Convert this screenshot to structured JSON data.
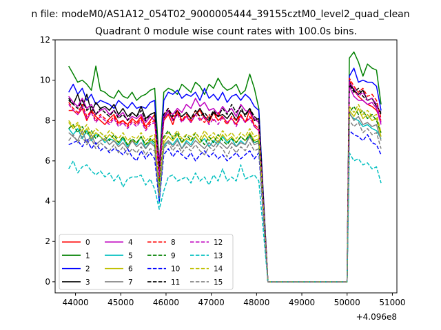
{
  "figure": {
    "suptitle": "n file: modeM0/AS1A12_054T02_9000005444_39155cztM0_level2_quad_clean"
  },
  "chart_data": {
    "type": "line",
    "title": "Quadrant 0 module wise count rates with 100.0s bins.",
    "xlabel": "",
    "ylabel": "",
    "x_offset_label": "+4.096e8",
    "x_offset": 409600000,
    "xlim_rel": [
      43550,
      51100
    ],
    "ylim": [
      -0.55,
      12
    ],
    "xticks_rel": [
      44000,
      45000,
      46000,
      47000,
      48000,
      49000,
      50000,
      51000
    ],
    "xtick_labels": [
      "44000",
      "45000",
      "46000",
      "47000",
      "48000",
      "49000",
      "50000",
      "51000"
    ],
    "yticks": [
      0,
      2,
      4,
      6,
      8,
      10,
      12
    ],
    "ytick_labels": [
      "0",
      "2",
      "4",
      "6",
      "8",
      "10",
      "12"
    ],
    "grid": false,
    "legend_placement": "lower-left",
    "legend_columns": 4,
    "x_rel": [
      43850,
      43950,
      44050,
      44150,
      44250,
      44350,
      44450,
      44550,
      44650,
      44750,
      44850,
      44950,
      45050,
      45150,
      45250,
      45350,
      45450,
      45550,
      45650,
      45750,
      45850,
      45950,
      46050,
      46150,
      46250,
      46350,
      46450,
      46550,
      46650,
      46750,
      46850,
      46950,
      47050,
      47150,
      47250,
      47350,
      47450,
      47550,
      47650,
      47750,
      47850,
      47950,
      48050,
      48250,
      50000,
      50050,
      50150,
      50250,
      50350,
      50450,
      50550,
      50650,
      50750
    ],
    "series": [
      {
        "name": "0",
        "color": "#ff0000",
        "dash": false,
        "values": [
          8.5,
          8.5,
          8.3,
          8.6,
          8.0,
          8.5,
          8.2,
          8.0,
          7.8,
          8.1,
          8.3,
          7.9,
          8.0,
          7.8,
          8.1,
          7.9,
          8.2,
          7.7,
          8.0,
          8.3,
          5.5,
          8.0,
          8.3,
          7.8,
          8.5,
          8.0,
          8.2,
          7.9,
          8.3,
          8.5,
          8.1,
          7.9,
          8.4,
          8.0,
          8.2,
          7.9,
          8.1,
          7.8,
          8.3,
          7.9,
          8.5,
          7.7,
          7.5,
          0,
          0,
          10.0,
          9.5,
          9.2,
          9.0,
          8.8,
          8.7,
          8.5,
          8.0
        ]
      },
      {
        "name": "1",
        "color": "#008000",
        "dash": false,
        "values": [
          10.7,
          10.3,
          9.9,
          10.0,
          9.8,
          9.5,
          10.7,
          9.5,
          9.4,
          9.2,
          9.1,
          9.5,
          9.2,
          9.1,
          9.4,
          9.0,
          9.2,
          9.3,
          9.5,
          9.6,
          5.8,
          9.4,
          9.6,
          9.5,
          9.3,
          9.8,
          9.6,
          9.4,
          9.9,
          9.7,
          9.3,
          9.8,
          9.6,
          10.1,
          9.7,
          9.5,
          9.6,
          9.8,
          9.3,
          9.5,
          10.3,
          9.6,
          8.6,
          0,
          0,
          11.1,
          11.4,
          10.9,
          10.2,
          10.8,
          10.6,
          10.5,
          8.8
        ]
      },
      {
        "name": "2",
        "color": "#0000ff",
        "dash": false,
        "values": [
          9.4,
          9.8,
          9.3,
          9.6,
          9.0,
          9.3,
          8.8,
          9.0,
          8.9,
          8.8,
          8.6,
          9.0,
          8.8,
          8.6,
          8.9,
          8.6,
          8.7,
          8.6,
          8.9,
          9.0,
          5.2,
          9.0,
          9.4,
          9.3,
          9.5,
          9.1,
          9.3,
          9.2,
          9.4,
          9.0,
          9.6,
          9.1,
          9.3,
          9.0,
          9.4,
          8.9,
          9.2,
          9.3,
          9.0,
          9.3,
          9.1,
          8.7,
          8.5,
          0,
          0,
          10.2,
          10.6,
          9.9,
          10.0,
          9.9,
          9.9,
          9.7,
          8.5
        ]
      },
      {
        "name": "3",
        "color": "#000000",
        "dash": false,
        "values": [
          9.0,
          8.8,
          9.3,
          8.6,
          9.3,
          8.4,
          8.9,
          8.6,
          8.7,
          8.5,
          8.8,
          8.3,
          8.6,
          8.2,
          8.4,
          8.2,
          8.7,
          8.1,
          8.3,
          8.4,
          5.4,
          8.1,
          8.5,
          8.0,
          8.3,
          8.2,
          8.4,
          8.1,
          8.3,
          8.6,
          8.2,
          8.0,
          8.4,
          8.2,
          8.3,
          8.1,
          8.4,
          8.0,
          8.5,
          8.3,
          8.6,
          8.0,
          8.1,
          0,
          0,
          9.9,
          9.5,
          9.3,
          9.5,
          9.0,
          9.1,
          8.7,
          8.4
        ]
      },
      {
        "name": "4",
        "color": "#bf00bf",
        "dash": false,
        "values": [
          9.2,
          8.9,
          8.7,
          9.1,
          8.6,
          8.8,
          8.3,
          8.5,
          8.6,
          8.3,
          8.5,
          8.2,
          8.4,
          8.0,
          8.2,
          8.1,
          8.3,
          7.9,
          8.2,
          8.0,
          6.0,
          8.2,
          8.5,
          8.3,
          8.6,
          8.4,
          8.8,
          8.6,
          9.1,
          8.7,
          8.9,
          8.5,
          8.6,
          8.3,
          8.7,
          8.4,
          8.6,
          8.2,
          8.8,
          8.5,
          8.4,
          8.1,
          7.9,
          0,
          0,
          9.7,
          9.2,
          9.0,
          9.0,
          8.8,
          8.9,
          8.6,
          7.8
        ]
      },
      {
        "name": "5",
        "color": "#00bfbf",
        "dash": false,
        "values": [
          7.6,
          7.3,
          7.6,
          7.1,
          7.5,
          7.0,
          7.3,
          7.2,
          6.9,
          7.1,
          7.0,
          6.8,
          7.1,
          6.7,
          7.0,
          6.8,
          7.2,
          6.6,
          7.0,
          6.8,
          3.9,
          6.7,
          7.0,
          6.8,
          7.1,
          6.6,
          7.0,
          6.8,
          7.2,
          6.9,
          7.1,
          6.7,
          7.0,
          6.8,
          7.2,
          6.9,
          7.1,
          6.7,
          7.0,
          6.8,
          7.3,
          6.9,
          7.0,
          0,
          0,
          8.3,
          8.1,
          8.0,
          7.7,
          7.8,
          7.6,
          7.5,
          7.1
        ]
      },
      {
        "name": "6",
        "color": "#bfbf00",
        "dash": false,
        "values": [
          7.9,
          7.6,
          7.8,
          7.3,
          7.6,
          7.1,
          7.4,
          7.2,
          7.0,
          7.3,
          7.1,
          6.9,
          7.2,
          6.8,
          7.0,
          6.9,
          7.2,
          6.8,
          7.0,
          7.1,
          4.3,
          6.9,
          7.2,
          7.0,
          7.3,
          6.9,
          7.1,
          7.0,
          7.2,
          6.9,
          7.3,
          7.0,
          7.2,
          6.9,
          7.3,
          7.0,
          7.2,
          6.9,
          7.2,
          7.0,
          7.4,
          7.0,
          7.1,
          0,
          0,
          8.5,
          8.2,
          8.6,
          8.1,
          8.3,
          8.0,
          8.1,
          7.2
        ]
      },
      {
        "name": "7",
        "color": "#808080",
        "dash": false,
        "values": [
          7.4,
          7.2,
          7.0,
          7.5,
          6.9,
          7.3,
          6.8,
          7.0,
          7.1,
          6.8,
          7.0,
          6.7,
          6.9,
          6.6,
          7.0,
          6.7,
          6.9,
          6.6,
          6.9,
          6.7,
          4.5,
          6.8,
          7.0,
          6.7,
          7.0,
          6.6,
          6.9,
          6.7,
          7.0,
          6.8,
          6.6,
          6.9,
          6.7,
          7.0,
          6.8,
          6.6,
          6.9,
          6.7,
          6.9,
          6.8,
          7.2,
          6.8,
          6.9,
          0,
          0,
          8.4,
          8.0,
          8.2,
          7.8,
          7.9,
          7.7,
          7.8,
          7.0
        ]
      },
      {
        "name": "8",
        "color": "#ff0000",
        "dash": true,
        "values": [
          8.9,
          8.6,
          8.4,
          8.8,
          8.2,
          8.5,
          8.0,
          8.3,
          8.1,
          7.9,
          8.2,
          7.8,
          8.0,
          7.7,
          8.0,
          7.8,
          8.1,
          7.6,
          7.9,
          8.0,
          5.1,
          8.3,
          8.6,
          8.1,
          8.4,
          8.0,
          8.3,
          8.0,
          8.5,
          8.1,
          7.9,
          8.3,
          8.0,
          8.4,
          8.1,
          7.8,
          8.2,
          8.0,
          8.3,
          7.9,
          8.2,
          7.8,
          7.6,
          0,
          0,
          10.1,
          9.7,
          9.4,
          9.6,
          9.2,
          9.3,
          9.0,
          8.1
        ]
      },
      {
        "name": "9",
        "color": "#008000",
        "dash": true,
        "values": [
          7.6,
          7.8,
          7.4,
          7.7,
          7.3,
          7.5,
          7.1,
          7.4,
          7.2,
          7.0,
          7.3,
          6.9,
          7.2,
          6.8,
          7.1,
          6.9,
          7.2,
          6.8,
          7.1,
          6.9,
          4.8,
          7.2,
          7.5,
          7.1,
          7.4,
          6.9,
          7.3,
          7.0,
          7.4,
          7.1,
          6.8,
          7.2,
          6.9,
          7.3,
          7.0,
          6.8,
          7.1,
          6.9,
          7.2,
          7.0,
          7.3,
          6.9,
          7.0,
          0,
          0,
          8.4,
          8.7,
          8.3,
          8.5,
          8.1,
          8.3,
          8.0,
          7.4
        ]
      },
      {
        "name": "10",
        "color": "#0000ff",
        "dash": true,
        "values": [
          6.8,
          6.9,
          7.0,
          6.7,
          7.1,
          6.6,
          6.9,
          6.5,
          6.7,
          6.4,
          6.6,
          6.5,
          6.3,
          6.6,
          6.2,
          6.0,
          6.5,
          6.1,
          6.4,
          6.1,
          4.0,
          6.3,
          6.6,
          6.2,
          6.5,
          6.3,
          6.1,
          6.4,
          6.0,
          6.3,
          6.5,
          6.2,
          6.4,
          6.1,
          6.3,
          6.0,
          6.2,
          6.4,
          6.1,
          6.3,
          6.5,
          6.1,
          6.4,
          0,
          0,
          7.5,
          7.3,
          7.2,
          7.0,
          7.3,
          6.9,
          6.8,
          6.3
        ]
      },
      {
        "name": "11",
        "color": "#000000",
        "dash": true,
        "values": [
          9.1,
          8.8,
          8.6,
          9.0,
          8.5,
          8.7,
          8.3,
          8.6,
          8.4,
          8.2,
          8.5,
          8.1,
          8.3,
          8.0,
          8.4,
          8.2,
          8.5,
          8.0,
          8.3,
          8.4,
          5.6,
          8.3,
          8.6,
          8.2,
          8.5,
          8.2,
          8.4,
          8.1,
          8.5,
          8.2,
          8.4,
          8.1,
          8.5,
          8.2,
          8.6,
          8.3,
          8.8,
          8.4,
          8.7,
          8.2,
          8.6,
          8.2,
          8.0,
          0,
          0,
          9.8,
          9.4,
          9.6,
          9.2,
          9.0,
          9.1,
          8.8,
          8.3
        ]
      },
      {
        "name": "12",
        "color": "#bf00bf",
        "dash": true,
        "values": [
          8.8,
          8.5,
          8.3,
          8.7,
          8.1,
          8.4,
          7.9,
          8.2,
          8.0,
          7.8,
          8.1,
          7.7,
          7.9,
          7.6,
          7.9,
          7.7,
          8.0,
          7.5,
          7.8,
          7.9,
          5.3,
          8.1,
          8.4,
          8.0,
          8.3,
          7.9,
          8.2,
          7.9,
          8.3,
          8.0,
          8.2,
          7.8,
          8.1,
          7.8,
          8.2,
          7.9,
          8.1,
          7.7,
          8.2,
          7.9,
          8.1,
          7.7,
          7.5,
          0,
          0,
          9.9,
          9.6,
          9.2,
          9.4,
          9.0,
          9.1,
          8.8,
          7.9
        ]
      },
      {
        "name": "13",
        "color": "#00bfbf",
        "dash": true,
        "values": [
          5.6,
          6.0,
          5.4,
          5.7,
          5.8,
          5.5,
          5.3,
          5.5,
          5.2,
          5.4,
          5.0,
          5.3,
          4.7,
          5.1,
          5.2,
          5.2,
          5.3,
          4.8,
          5.1,
          4.6,
          3.6,
          4.5,
          5.2,
          5.3,
          5.0,
          5.1,
          5.2,
          4.9,
          5.4,
          5.0,
          5.2,
          4.8,
          5.3,
          5.0,
          5.6,
          5.0,
          5.2,
          5.0,
          5.8,
          5.1,
          5.2,
          5.3,
          5.0,
          0,
          0,
          6.4,
          6.0,
          6.1,
          5.8,
          5.9,
          5.6,
          5.7,
          4.9
        ]
      },
      {
        "name": "14",
        "color": "#bfbf00",
        "dash": true,
        "values": [
          8.0,
          7.7,
          7.9,
          7.5,
          7.8,
          7.3,
          7.6,
          7.4,
          7.2,
          7.5,
          7.3,
          7.1,
          7.4,
          7.0,
          7.2,
          7.1,
          7.4,
          7.0,
          7.2,
          7.3,
          4.4,
          7.1,
          7.4,
          7.2,
          7.5,
          7.1,
          7.3,
          7.2,
          7.4,
          7.1,
          7.5,
          7.2,
          7.4,
          7.1,
          7.5,
          7.2,
          7.4,
          7.1,
          7.4,
          7.2,
          7.6,
          7.2,
          7.3,
          0,
          0,
          8.7,
          8.4,
          8.8,
          8.3,
          8.5,
          8.2,
          8.3,
          7.4
        ]
      },
      {
        "name": "15",
        "color": "#808080",
        "dash": true,
        "values": [
          7.0,
          7.3,
          6.9,
          7.2,
          6.8,
          7.1,
          6.6,
          6.9,
          6.7,
          6.5,
          6.8,
          6.4,
          6.7,
          6.3,
          6.6,
          6.4,
          6.7,
          6.3,
          6.6,
          6.5,
          4.2,
          6.6,
          6.9,
          6.5,
          6.8,
          6.4,
          6.7,
          6.5,
          6.8,
          6.5,
          6.3,
          6.7,
          6.5,
          6.8,
          6.6,
          6.2,
          6.7,
          6.4,
          6.7,
          6.5,
          6.9,
          6.5,
          6.6,
          0,
          0,
          8.0,
          7.7,
          7.9,
          7.4,
          7.6,
          7.3,
          7.4,
          6.6
        ]
      }
    ]
  }
}
